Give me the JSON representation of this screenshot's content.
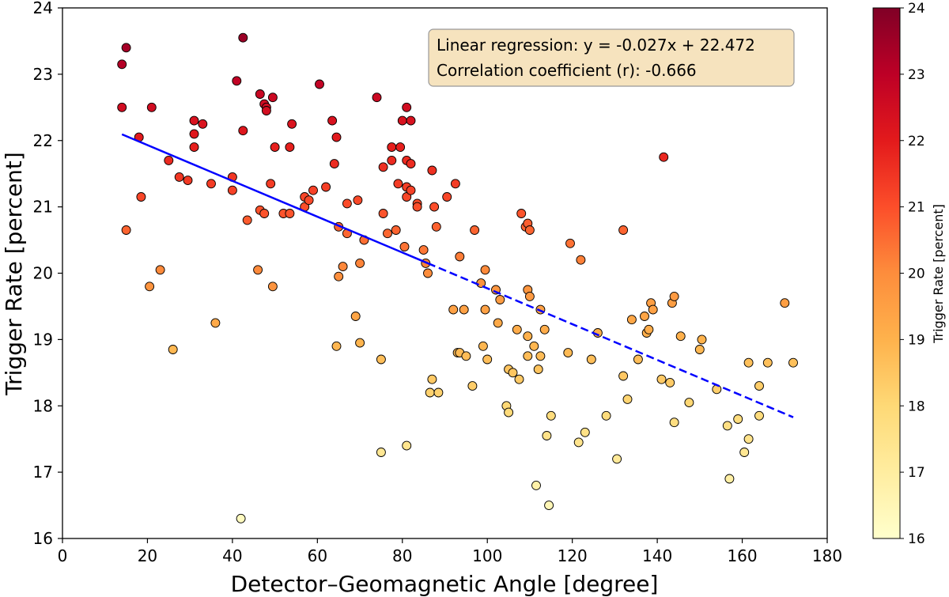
{
  "chart_data": {
    "type": "scatter",
    "xlabel": "Detector–Geomagnetic Angle [degree]",
    "ylabel": "Trigger Rate [percent]",
    "xlim": [
      0,
      180
    ],
    "ylim": [
      16,
      24
    ],
    "xticks": [
      "0",
      "20",
      "40",
      "60",
      "80",
      "100",
      "120",
      "140",
      "160",
      "180"
    ],
    "yticks": [
      "16",
      "17",
      "18",
      "19",
      "20",
      "21",
      "22",
      "23",
      "24"
    ],
    "colorbar": {
      "label": "Trigger Rate [percent]",
      "range": [
        16,
        24
      ],
      "ticks": [
        "16",
        "17",
        "18",
        "19",
        "20",
        "21",
        "22",
        "23",
        "24"
      ],
      "colormap": "YlOrRd"
    },
    "annotation": {
      "line1": "Linear regression: y = -0.027x + 22.472",
      "line2": "Correlation coefficient (r): -0.666"
    },
    "regression": {
      "slope": -0.027,
      "intercept": 22.472,
      "solid_x": [
        14,
        86
      ],
      "dashed_x": [
        86,
        172
      ],
      "color": "#0000ff"
    },
    "points": [
      [
        14,
        22.5
      ],
      [
        14,
        23.15
      ],
      [
        15,
        23.4
      ],
      [
        15,
        20.65
      ],
      [
        18,
        22.05
      ],
      [
        18.5,
        21.15
      ],
      [
        20.5,
        19.8
      ],
      [
        21,
        22.5
      ],
      [
        23,
        20.05
      ],
      [
        25,
        21.7
      ],
      [
        26,
        18.85
      ],
      [
        27.5,
        21.45
      ],
      [
        29.5,
        21.4
      ],
      [
        31,
        22.3
      ],
      [
        31,
        22.1
      ],
      [
        31,
        21.9
      ],
      [
        33,
        22.25
      ],
      [
        35,
        21.35
      ],
      [
        36,
        19.25
      ],
      [
        40,
        21.45
      ],
      [
        40,
        21.25
      ],
      [
        41,
        22.9
      ],
      [
        42,
        16.3
      ],
      [
        42.5,
        23.55
      ],
      [
        42.5,
        22.15
      ],
      [
        43.5,
        20.8
      ],
      [
        46,
        20.05
      ],
      [
        46.5,
        22.7
      ],
      [
        46.5,
        20.95
      ],
      [
        47.5,
        22.55
      ],
      [
        47.5,
        20.9
      ],
      [
        48,
        22.5
      ],
      [
        48,
        22.45
      ],
      [
        49,
        21.35
      ],
      [
        49.5,
        22.65
      ],
      [
        49.5,
        19.8
      ],
      [
        50,
        21.9
      ],
      [
        52,
        20.9
      ],
      [
        53.5,
        20.9
      ],
      [
        53.5,
        21.9
      ],
      [
        54,
        22.25
      ],
      [
        57,
        21.0
      ],
      [
        57,
        21.15
      ],
      [
        58,
        21.1
      ],
      [
        59,
        21.25
      ],
      [
        60.5,
        22.85
      ],
      [
        62,
        21.3
      ],
      [
        63.5,
        22.3
      ],
      [
        64,
        21.65
      ],
      [
        64.5,
        22.05
      ],
      [
        64.5,
        18.9
      ],
      [
        65,
        20.7
      ],
      [
        65,
        19.95
      ],
      [
        66,
        20.1
      ],
      [
        67,
        21.05
      ],
      [
        67,
        20.6
      ],
      [
        69,
        19.35
      ],
      [
        69.5,
        21.1
      ],
      [
        70,
        18.95
      ],
      [
        70,
        20.15
      ],
      [
        71,
        20.5
      ],
      [
        74,
        22.65
      ],
      [
        75,
        17.3
      ],
      [
        75,
        18.7
      ],
      [
        75.5,
        21.6
      ],
      [
        75.5,
        20.9
      ],
      [
        76.5,
        20.6
      ],
      [
        77.5,
        21.7
      ],
      [
        77.5,
        21.9
      ],
      [
        78.5,
        20.65
      ],
      [
        79,
        21.35
      ],
      [
        79.5,
        21.9
      ],
      [
        80,
        22.3
      ],
      [
        80.5,
        20.4
      ],
      [
        81,
        22.5
      ],
      [
        81,
        21.7
      ],
      [
        81,
        21.3
      ],
      [
        81,
        21.15
      ],
      [
        81,
        17.4
      ],
      [
        82,
        21.25
      ],
      [
        82,
        21.65
      ],
      [
        82,
        22.3
      ],
      [
        83.5,
        21.05
      ],
      [
        83.5,
        21.0
      ],
      [
        85,
        20.35
      ],
      [
        85.5,
        20.15
      ],
      [
        86,
        20.0
      ],
      [
        86.5,
        18.2
      ],
      [
        87,
        18.4
      ],
      [
        87,
        21.55
      ],
      [
        87.5,
        21.0
      ],
      [
        88,
        20.7
      ],
      [
        88.5,
        18.2
      ],
      [
        90.5,
        21.15
      ],
      [
        92,
        19.45
      ],
      [
        92.5,
        21.35
      ],
      [
        93,
        18.8
      ],
      [
        93.5,
        18.8
      ],
      [
        93.5,
        20.25
      ],
      [
        94.5,
        19.45
      ],
      [
        95,
        18.75
      ],
      [
        96.5,
        18.3
      ],
      [
        97,
        20.65
      ],
      [
        98.5,
        19.85
      ],
      [
        99,
        18.9
      ],
      [
        99.5,
        20.05
      ],
      [
        99.5,
        19.45
      ],
      [
        100,
        18.7
      ],
      [
        102,
        19.75
      ],
      [
        102.5,
        19.25
      ],
      [
        103,
        19.6
      ],
      [
        104.5,
        18.0
      ],
      [
        105,
        17.9
      ],
      [
        105,
        18.55
      ],
      [
        106,
        18.5
      ],
      [
        107,
        19.15
      ],
      [
        107.5,
        18.4
      ],
      [
        108,
        20.9
      ],
      [
        109,
        20.7
      ],
      [
        109.5,
        20.75
      ],
      [
        109.5,
        19.05
      ],
      [
        109.5,
        18.75
      ],
      [
        109.5,
        19.75
      ],
      [
        110,
        20.65
      ],
      [
        110,
        19.65
      ],
      [
        111,
        18.9
      ],
      [
        111.5,
        16.8
      ],
      [
        112,
        18.55
      ],
      [
        112.5,
        18.75
      ],
      [
        112.5,
        19.45
      ],
      [
        113.5,
        19.15
      ],
      [
        114,
        17.55
      ],
      [
        114.5,
        16.5
      ],
      [
        115,
        17.85
      ],
      [
        119,
        18.8
      ],
      [
        119.5,
        20.45
      ],
      [
        121.5,
        17.45
      ],
      [
        122,
        20.2
      ],
      [
        123,
        17.6
      ],
      [
        124.5,
        18.7
      ],
      [
        126,
        19.1
      ],
      [
        128,
        17.85
      ],
      [
        130.5,
        17.2
      ],
      [
        132,
        18.45
      ],
      [
        132,
        20.65
      ],
      [
        133,
        18.1
      ],
      [
        134,
        19.3
      ],
      [
        135.5,
        18.7
      ],
      [
        137,
        19.35
      ],
      [
        137.5,
        19.1
      ],
      [
        138,
        19.15
      ],
      [
        138.5,
        19.55
      ],
      [
        139,
        19.45
      ],
      [
        141,
        18.4
      ],
      [
        141.5,
        21.75
      ],
      [
        143,
        18.35
      ],
      [
        143.5,
        19.55
      ],
      [
        144,
        17.75
      ],
      [
        144,
        19.65
      ],
      [
        145.5,
        19.05
      ],
      [
        147.5,
        18.05
      ],
      [
        150,
        18.85
      ],
      [
        150.5,
        19.0
      ],
      [
        154,
        18.25
      ],
      [
        156.5,
        17.7
      ],
      [
        157,
        16.9
      ],
      [
        159,
        17.8
      ],
      [
        160.5,
        17.3
      ],
      [
        161.5,
        17.5
      ],
      [
        161.5,
        18.65
      ],
      [
        164,
        18.3
      ],
      [
        164,
        17.85
      ],
      [
        166,
        18.65
      ],
      [
        170,
        19.55
      ],
      [
        172,
        18.65
      ]
    ]
  }
}
